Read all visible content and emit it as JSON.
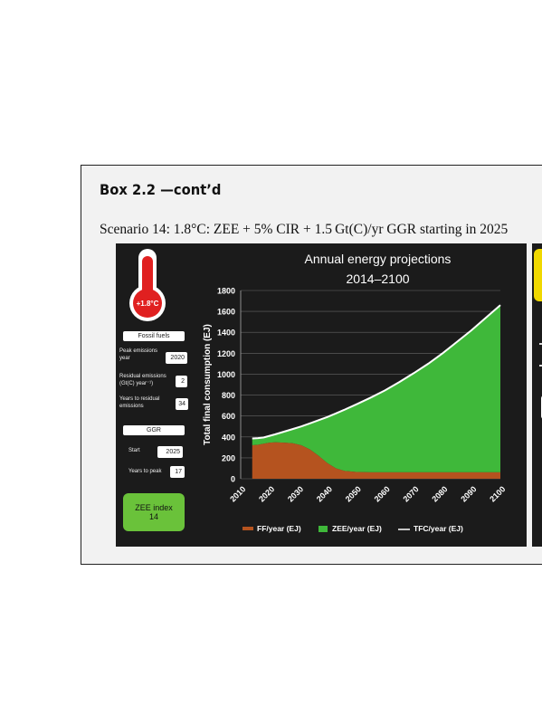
{
  "box": {
    "title": "Box 2.2  —cont’d",
    "caption": "Scenario 14: 1.8°C: ZEE + 5% CIR + 1.5 Gt(C)/yr GGR starting in 2025"
  },
  "sidebar": {
    "thermometer_label": "+1.8°C",
    "fossil_header": "Fossil fuels",
    "peak_year_label": "Peak emissions year",
    "peak_year_value": "2020",
    "residual_label": "Residual emissions (Gt(C) year⁻¹)",
    "residual_value": "2",
    "years_residual_label": "Years to residual emissions",
    "years_residual_value": "34",
    "ggr_header": "GGR",
    "start_label": "Start",
    "start_value": "2025",
    "years_peak_label": "Years to peak",
    "years_peak_value": "17",
    "zee_label": "ZEE index",
    "zee_value": "14"
  },
  "colors": {
    "ff": "#b5531f",
    "zee": "#3fb83a",
    "tfc": "#ffffff",
    "panel": "#1b1b1b",
    "thermometer": "#e02020"
  },
  "chart_data": {
    "type": "area",
    "title": "Annual energy projections",
    "subtitle": "2014–2100",
    "ylabel": "Total final consumption (EJ)",
    "xlabel": "",
    "ylim": [
      0,
      1800
    ],
    "yticks": [
      0,
      200,
      400,
      600,
      800,
      1000,
      1200,
      1400,
      1600,
      1800
    ],
    "xticks": [
      2010,
      2020,
      2030,
      2040,
      2050,
      2060,
      2070,
      2080,
      2090,
      2100
    ],
    "grid": true,
    "legend_position": "bottom",
    "x": [
      2014,
      2016,
      2018,
      2020,
      2022,
      2025,
      2028,
      2031,
      2034,
      2037,
      2040,
      2043,
      2046,
      2050,
      2055,
      2060,
      2065,
      2070,
      2075,
      2080,
      2085,
      2090,
      2095,
      2100
    ],
    "series": [
      {
        "name": "FF/year (EJ)",
        "values": [
          320,
          325,
          335,
          345,
          348,
          345,
          340,
          320,
          280,
          220,
          150,
          100,
          75,
          65,
          62,
          62,
          62,
          62,
          62,
          62,
          62,
          62,
          62,
          62
        ]
      },
      {
        "name": "TFC/year (EJ)",
        "values": [
          385,
          388,
          395,
          410,
          425,
          450,
          475,
          500,
          530,
          560,
          590,
          625,
          660,
          710,
          775,
          845,
          925,
          1010,
          1100,
          1200,
          1310,
          1420,
          1540,
          1660
        ]
      }
    ],
    "legend": [
      "FF/year (EJ)",
      "ZEE/year (EJ)",
      "TFC/year (EJ)"
    ]
  }
}
